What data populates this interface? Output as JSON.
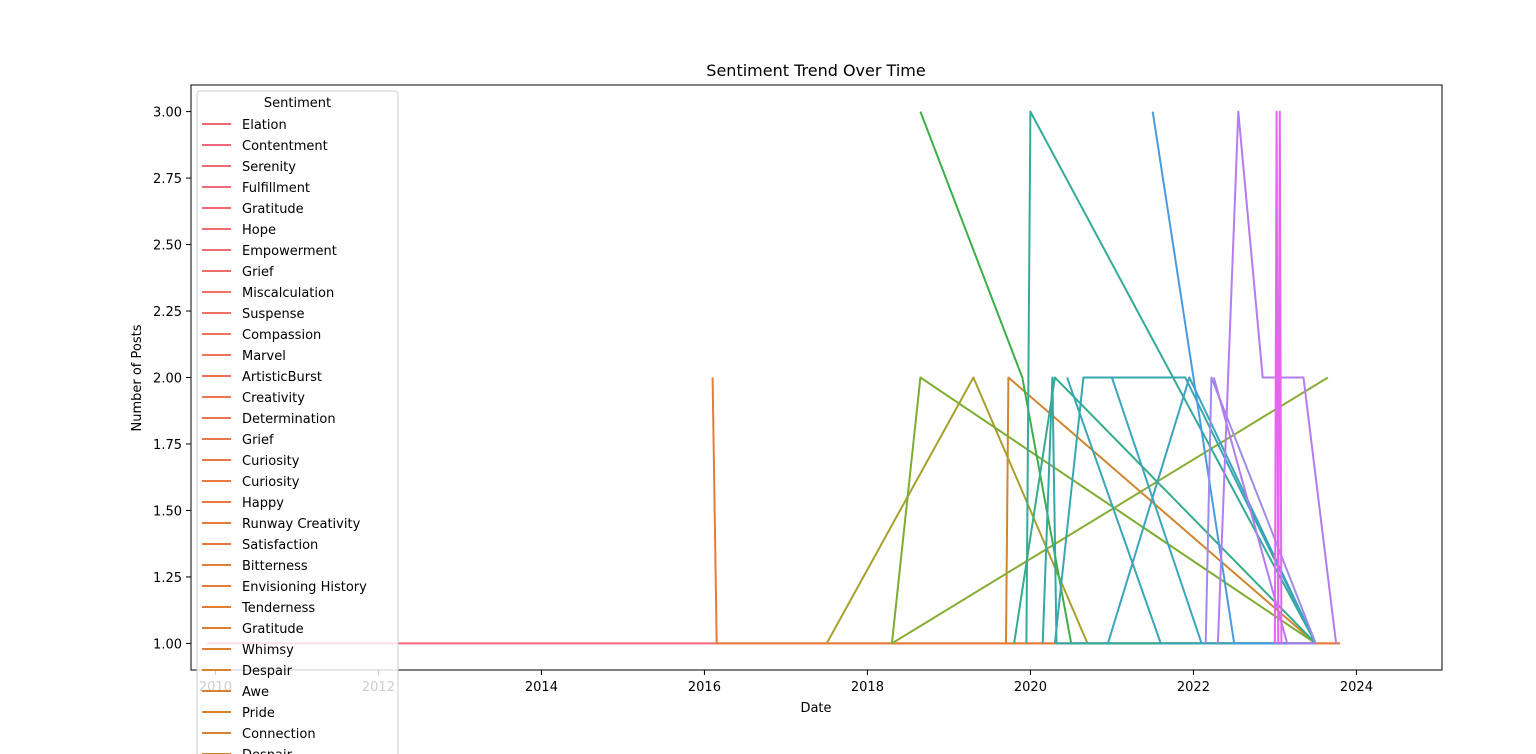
{
  "chart_data": {
    "type": "line",
    "title": "Sentiment Trend Over Time",
    "xlabel": "Date",
    "ylabel": "Number of Posts",
    "xlim": [
      2009.7,
      2025.05
    ],
    "ylim": [
      0.9,
      3.1
    ],
    "x_ticks": [
      2010,
      2012,
      2014,
      2016,
      2018,
      2020,
      2022,
      2024
    ],
    "x_tick_labels": [
      "2010",
      "2012",
      "2014",
      "2016",
      "2018",
      "2020",
      "2022",
      "2024"
    ],
    "y_ticks": [
      1.0,
      1.25,
      1.5,
      1.75,
      2.0,
      2.25,
      2.5,
      2.75,
      3.0
    ],
    "y_tick_labels": [
      "1.00",
      "1.25",
      "1.50",
      "1.75",
      "2.00",
      "2.25",
      "2.50",
      "2.75",
      "3.00"
    ],
    "grid": false,
    "legend": {
      "title": "Sentiment",
      "placement": "upper-left",
      "entries": [
        {
          "label": "Elation",
          "color": "#f0677a"
        },
        {
          "label": "Contentment",
          "color": "#f0677a"
        },
        {
          "label": "Serenity",
          "color": "#f0697a"
        },
        {
          "label": "Fulfillment",
          "color": "#f06a78"
        },
        {
          "label": "Gratitude",
          "color": "#f06b75"
        },
        {
          "label": "Hope",
          "color": "#f06c72"
        },
        {
          "label": "Empowerment",
          "color": "#f06d6e"
        },
        {
          "label": "Grief",
          "color": "#f06e6a"
        },
        {
          "label": "Miscalculation",
          "color": "#f06f66"
        },
        {
          "label": "Suspense",
          "color": "#f07062"
        },
        {
          "label": "Compassion",
          "color": "#ef715e"
        },
        {
          "label": "Marvel",
          "color": "#ef725a"
        },
        {
          "label": "ArtisticBurst",
          "color": "#ee7356"
        },
        {
          "label": "Creativity",
          "color": "#ed7452"
        },
        {
          "label": "Determination",
          "color": "#ec754e"
        },
        {
          "label": "Grief",
          "color": "#eb764a"
        },
        {
          "label": "Curiosity",
          "color": "#ea7746"
        },
        {
          "label": "Curiosity",
          "color": "#e97842"
        },
        {
          "label": "Happy",
          "color": "#e8793f"
        },
        {
          "label": "Runway Creativity",
          "color": "#e67a3c"
        },
        {
          "label": "Satisfaction",
          "color": "#e57b39"
        },
        {
          "label": "Bitterness",
          "color": "#e37c37"
        },
        {
          "label": "Envisioning History",
          "color": "#e17d35"
        },
        {
          "label": "Tenderness",
          "color": "#df7e34"
        },
        {
          "label": "Gratitude",
          "color": "#dd7f33"
        },
        {
          "label": "Whimsy",
          "color": "#db8032"
        },
        {
          "label": "Despair",
          "color": "#d98131"
        },
        {
          "label": "Awe",
          "color": "#d78231"
        },
        {
          "label": "Pride",
          "color": "#d58331"
        },
        {
          "label": "Connection",
          "color": "#d38431"
        },
        {
          "label": "Despair",
          "color": "#d18531"
        }
      ]
    },
    "series": [
      {
        "color": "#f0677a",
        "x": [
          2009.9,
          2023.8
        ],
        "y": [
          1,
          1
        ]
      },
      {
        "color": "#e57b39",
        "x": [
          2016.1,
          2016.15,
          2023.8
        ],
        "y": [
          2,
          1,
          1
        ]
      },
      {
        "color": "#d18531",
        "x": [
          2019.7,
          2019.73,
          2023.5
        ],
        "y": [
          1,
          2,
          1
        ]
      },
      {
        "color": "#a8a02e",
        "x": [
          2017.5,
          2019.3,
          2020.7,
          2023.5
        ],
        "y": [
          1,
          2,
          1,
          1
        ]
      },
      {
        "color": "#7cad30",
        "x": [
          2018.3,
          2018.65,
          2023.5
        ],
        "y": [
          1,
          2,
          1
        ]
      },
      {
        "color": "#88ad35",
        "x": [
          2018.3,
          2023.65
        ],
        "y": [
          1,
          2
        ]
      },
      {
        "color": "#3eae4a",
        "x": [
          2018.65,
          2019.9,
          2020.5,
          2023.5
        ],
        "y": [
          3,
          2,
          1,
          1
        ]
      },
      {
        "color": "#35ac8a",
        "x": [
          2019.8,
          2020.3,
          2023.5
        ],
        "y": [
          1,
          2,
          1
        ]
      },
      {
        "color": "#33aa9a",
        "x": [
          2019.95,
          2020.0,
          2023.5
        ],
        "y": [
          1,
          3,
          1
        ]
      },
      {
        "color": "#35a7a4",
        "x": [
          2020.15,
          2020.27,
          2020.32,
          2023.5
        ],
        "y": [
          1,
          2,
          1,
          1
        ]
      },
      {
        "color": "#37a8b0",
        "x": [
          2020.3,
          2020.65,
          2021.9,
          2023.5
        ],
        "y": [
          1,
          2,
          2,
          1
        ]
      },
      {
        "color": "#39a6b8",
        "x": [
          2020.45,
          2021.6,
          2023.5
        ],
        "y": [
          2,
          1,
          1
        ]
      },
      {
        "color": "#3ba3bd",
        "x": [
          2020.95,
          2021.95,
          2023.5
        ],
        "y": [
          1,
          2,
          1
        ]
      },
      {
        "color": "#3da5c0",
        "x": [
          2021.0,
          2022.1,
          2023.5
        ],
        "y": [
          2,
          1,
          1
        ]
      },
      {
        "color": "#4a9ae0",
        "x": [
          2021.5,
          2022.5,
          2023.5
        ],
        "y": [
          3,
          1,
          1
        ]
      },
      {
        "color": "#9e8ce8",
        "x": [
          2022.15,
          2022.22,
          2023.5
        ],
        "y": [
          1,
          2,
          1
        ]
      },
      {
        "color": "#b07ded",
        "x": [
          2022.25,
          2023.15,
          2023.5
        ],
        "y": [
          2,
          1,
          1
        ]
      },
      {
        "color": "#b57cef",
        "x": [
          2022.3,
          2022.55,
          2022.85,
          2023.35,
          2023.75
        ],
        "y": [
          1,
          3,
          2,
          2,
          1
        ]
      },
      {
        "color": "#e565f0",
        "x": [
          2023.0,
          2023.02,
          2023.04,
          2023.06,
          2023.08,
          2023.1
        ],
        "y": [
          1,
          3,
          1,
          3,
          1,
          1
        ]
      }
    ]
  }
}
